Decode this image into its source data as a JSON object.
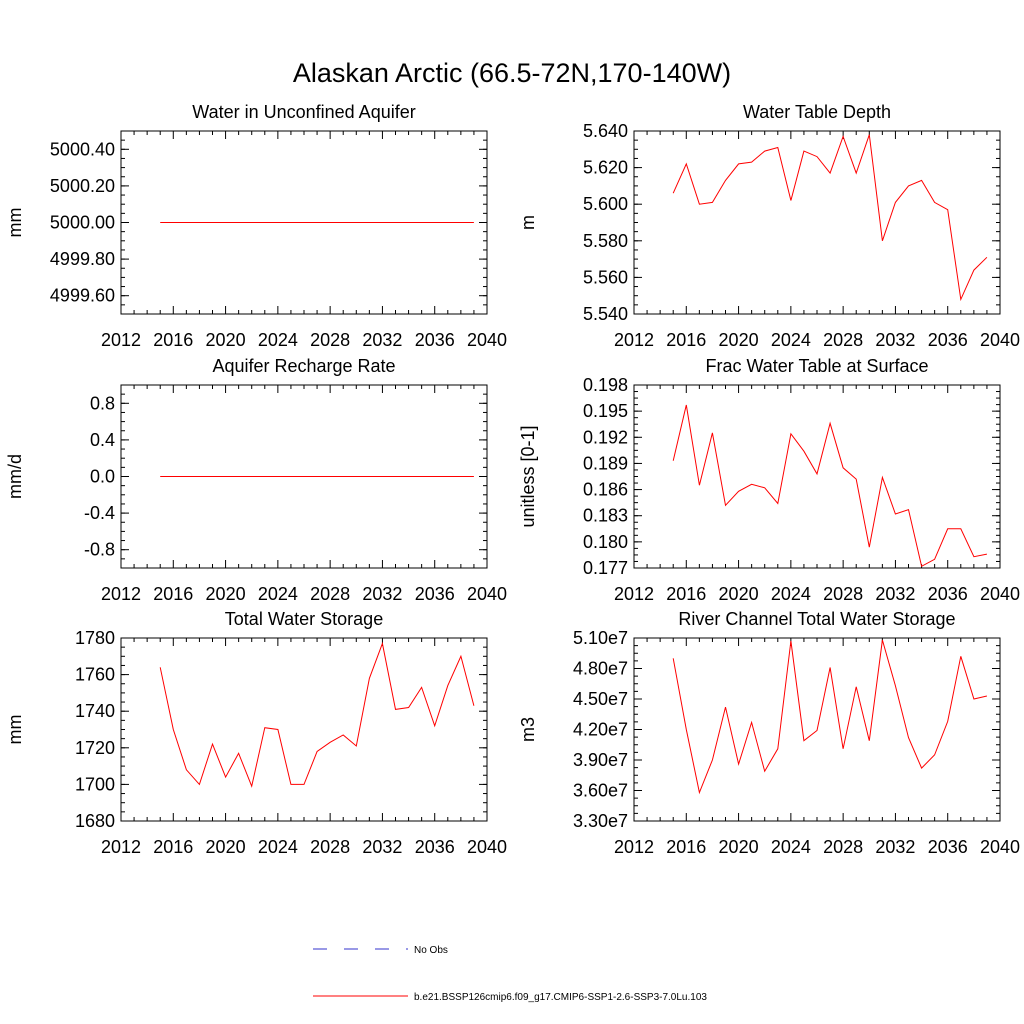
{
  "figure": {
    "title": "Alaskan Arctic (66.5-72N,170-140W)"
  },
  "legend": {
    "entries": [
      {
        "label": "No Obs",
        "color": "#3333cc",
        "style": "dashed"
      },
      {
        "label": "b.e21.BSSP126cmip6.f09_g17.CMIP6-SSP1-2.6-SSP3-7.0Lu.103",
        "color": "#ff0000",
        "style": "solid"
      }
    ]
  },
  "chart_data": [
    {
      "type": "line",
      "title": "Water in Unconfined Aquifer",
      "ylabel": "mm",
      "xlim": [
        2012,
        2040
      ],
      "ylim": [
        4999.5,
        5000.5
      ],
      "xticks": [
        "2012",
        "2016",
        "2020",
        "2024",
        "2028",
        "2032",
        "2036",
        "2040"
      ],
      "yticks": [
        {
          "v": 4999.6,
          "label": "4999.60"
        },
        {
          "v": 4999.8,
          "label": "4999.80"
        },
        {
          "v": 5000.0,
          "label": "5000.00"
        },
        {
          "v": 5000.2,
          "label": "5000.20"
        },
        {
          "v": 5000.4,
          "label": "5000.40"
        }
      ],
      "series": [
        {
          "color": "#ff0000",
          "x": [
            2015,
            2016,
            2017,
            2018,
            2019,
            2020,
            2021,
            2022,
            2023,
            2024,
            2025,
            2026,
            2027,
            2028,
            2029,
            2030,
            2031,
            2032,
            2033,
            2034,
            2035,
            2036,
            2037,
            2038,
            2039
          ],
          "y": [
            5000,
            5000,
            5000,
            5000,
            5000,
            5000,
            5000,
            5000,
            5000,
            5000,
            5000,
            5000,
            5000,
            5000,
            5000,
            5000,
            5000,
            5000,
            5000,
            5000,
            5000,
            5000,
            5000,
            5000,
            5000
          ]
        }
      ]
    },
    {
      "type": "line",
      "title": "Water Table Depth",
      "ylabel": "m",
      "xlim": [
        2012,
        2040
      ],
      "ylim": [
        5.54,
        5.64
      ],
      "xticks": [
        "2012",
        "2016",
        "2020",
        "2024",
        "2028",
        "2032",
        "2036",
        "2040"
      ],
      "yticks": [
        {
          "v": 5.54,
          "label": "5.540"
        },
        {
          "v": 5.56,
          "label": "5.560"
        },
        {
          "v": 5.58,
          "label": "5.580"
        },
        {
          "v": 5.6,
          "label": "5.600"
        },
        {
          "v": 5.62,
          "label": "5.620"
        },
        {
          "v": 5.64,
          "label": "5.640"
        }
      ],
      "series": [
        {
          "color": "#ff0000",
          "x": [
            2015,
            2016,
            2017,
            2018,
            2019,
            2020,
            2021,
            2022,
            2023,
            2024,
            2025,
            2026,
            2027,
            2028,
            2029,
            2030,
            2031,
            2032,
            2033,
            2034,
            2035,
            2036,
            2037,
            2038,
            2039
          ],
          "y": [
            5.606,
            5.622,
            5.6,
            5.601,
            5.613,
            5.622,
            5.623,
            5.629,
            5.631,
            5.602,
            5.629,
            5.626,
            5.617,
            5.637,
            5.617,
            5.638,
            5.58,
            5.601,
            5.61,
            5.613,
            5.601,
            5.597,
            5.548,
            5.564,
            5.571
          ]
        }
      ]
    },
    {
      "type": "line",
      "title": "Aquifer Recharge Rate",
      "ylabel": "mm/d",
      "xlim": [
        2012,
        2040
      ],
      "ylim": [
        -1.0,
        1.0
      ],
      "xticks": [
        "2012",
        "2016",
        "2020",
        "2024",
        "2028",
        "2032",
        "2036",
        "2040"
      ],
      "yticks": [
        {
          "v": -0.8,
          "label": "-0.8"
        },
        {
          "v": -0.4,
          "label": "-0.4"
        },
        {
          "v": 0.0,
          "label": "0.0"
        },
        {
          "v": 0.4,
          "label": "0.4"
        },
        {
          "v": 0.8,
          "label": "0.8"
        }
      ],
      "series": [
        {
          "color": "#ff0000",
          "x": [
            2015,
            2016,
            2017,
            2018,
            2019,
            2020,
            2021,
            2022,
            2023,
            2024,
            2025,
            2026,
            2027,
            2028,
            2029,
            2030,
            2031,
            2032,
            2033,
            2034,
            2035,
            2036,
            2037,
            2038,
            2039
          ],
          "y": [
            0,
            0,
            0,
            0,
            0,
            0,
            0,
            0,
            0,
            0,
            0,
            0,
            0,
            0,
            0,
            0,
            0,
            0,
            0,
            0,
            0,
            0,
            0,
            0,
            0
          ]
        }
      ]
    },
    {
      "type": "line",
      "title": "Frac Water Table at Surface",
      "ylabel": "unitless [0-1]",
      "xlim": [
        2012,
        2040
      ],
      "ylim": [
        0.177,
        0.198
      ],
      "xticks": [
        "2012",
        "2016",
        "2020",
        "2024",
        "2028",
        "2032",
        "2036",
        "2040"
      ],
      "yticks": [
        {
          "v": 0.177,
          "label": "0.177"
        },
        {
          "v": 0.18,
          "label": "0.180"
        },
        {
          "v": 0.183,
          "label": "0.183"
        },
        {
          "v": 0.186,
          "label": "0.186"
        },
        {
          "v": 0.189,
          "label": "0.189"
        },
        {
          "v": 0.192,
          "label": "0.192"
        },
        {
          "v": 0.195,
          "label": "0.195"
        },
        {
          "v": 0.198,
          "label": "0.198"
        }
      ],
      "series": [
        {
          "color": "#ff0000",
          "x": [
            2015,
            2016,
            2017,
            2018,
            2019,
            2020,
            2021,
            2022,
            2023,
            2024,
            2025,
            2026,
            2027,
            2028,
            2029,
            2030,
            2031,
            2032,
            2033,
            2034,
            2035,
            2036,
            2037,
            2038,
            2039
          ],
          "y": [
            0.1893,
            0.1957,
            0.1865,
            0.1925,
            0.1842,
            0.1858,
            0.1866,
            0.1862,
            0.1844,
            0.1924,
            0.1904,
            0.1878,
            0.1936,
            0.1885,
            0.1872,
            0.1794,
            0.1874,
            0.1832,
            0.1837,
            0.1772,
            0.178,
            0.1815,
            0.1815,
            0.1783,
            0.1786
          ]
        }
      ]
    },
    {
      "type": "line",
      "title": "Total Water Storage",
      "ylabel": "mm",
      "xlim": [
        2012,
        2040
      ],
      "ylim": [
        1680,
        1780
      ],
      "xticks": [
        "2012",
        "2016",
        "2020",
        "2024",
        "2028",
        "2032",
        "2036",
        "2040"
      ],
      "yticks": [
        {
          "v": 1680,
          "label": "1680"
        },
        {
          "v": 1700,
          "label": "1700"
        },
        {
          "v": 1720,
          "label": "1720"
        },
        {
          "v": 1740,
          "label": "1740"
        },
        {
          "v": 1760,
          "label": "1760"
        },
        {
          "v": 1780,
          "label": "1780"
        }
      ],
      "series": [
        {
          "color": "#ff0000",
          "x": [
            2015,
            2016,
            2017,
            2018,
            2019,
            2020,
            2021,
            2022,
            2023,
            2024,
            2025,
            2026,
            2027,
            2028,
            2029,
            2030,
            2031,
            2032,
            2033,
            2034,
            2035,
            2036,
            2037,
            2038,
            2039
          ],
          "y": [
            1764,
            1730,
            1708,
            1700,
            1722,
            1704,
            1717,
            1699,
            1731,
            1730,
            1700,
            1700,
            1718,
            1723,
            1727,
            1721,
            1758,
            1777,
            1741,
            1742,
            1753,
            1732,
            1754,
            1770,
            1743
          ]
        }
      ]
    },
    {
      "type": "line",
      "title": "River Channel Total Water Storage",
      "ylabel": "m3",
      "xlim": [
        2012,
        2040
      ],
      "ylim": [
        33000000,
        51000000
      ],
      "xticks": [
        "2012",
        "2016",
        "2020",
        "2024",
        "2028",
        "2032",
        "2036",
        "2040"
      ],
      "yticks": [
        {
          "v": 33000000,
          "label": "3.30e7"
        },
        {
          "v": 36000000,
          "label": "3.60e7"
        },
        {
          "v": 39000000,
          "label": "3.90e7"
        },
        {
          "v": 42000000,
          "label": "4.20e7"
        },
        {
          "v": 45000000,
          "label": "4.50e7"
        },
        {
          "v": 48000000,
          "label": "4.80e7"
        },
        {
          "v": 51000000,
          "label": "5.10e7"
        }
      ],
      "series": [
        {
          "color": "#ff0000",
          "x": [
            2015,
            2016,
            2017,
            2018,
            2019,
            2020,
            2021,
            2022,
            2023,
            2024,
            2025,
            2026,
            2027,
            2028,
            2029,
            2030,
            2031,
            2032,
            2033,
            2034,
            2035,
            2036,
            2037,
            2038,
            2039
          ],
          "y": [
            49000000,
            42000000,
            35800000,
            39000000,
            44200000,
            38600000,
            42700000,
            37900000,
            40100000,
            50700000,
            40900000,
            41900000,
            48100000,
            40100000,
            46200000,
            40900000,
            50800000,
            46300000,
            41200000,
            38200000,
            39500000,
            42800000,
            49200000,
            45000000,
            45300000
          ]
        }
      ]
    }
  ]
}
